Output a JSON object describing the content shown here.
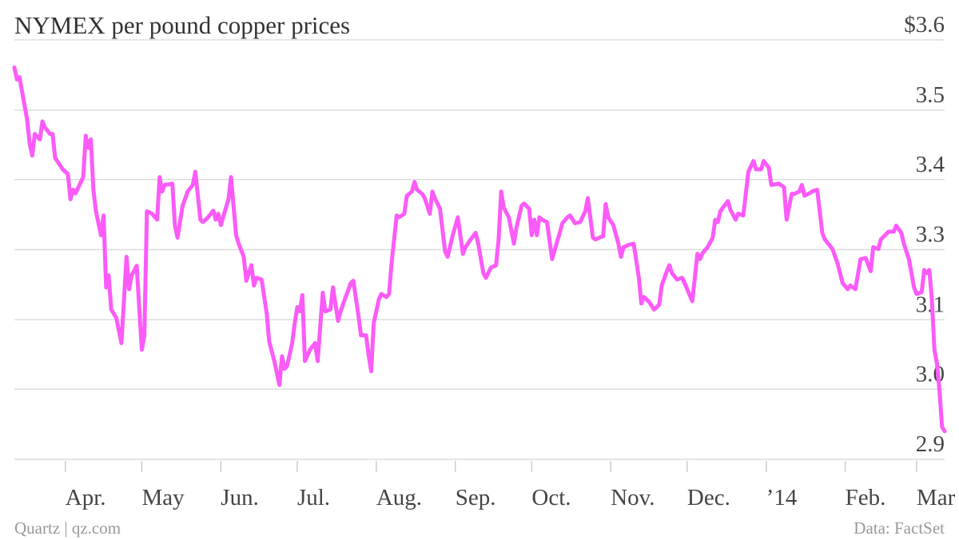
{
  "chart_data": {
    "type": "line",
    "title": "NYMEX per pound copper prices",
    "source": "Quartz | qz.com",
    "credit": "Data: FactSet",
    "color": "#fb5bf8",
    "grid": true,
    "xlim": [
      "2013-03-12",
      "2014-03-12"
    ],
    "xticks": [
      {
        "value": "2013-04-01",
        "label": "Apr."
      },
      {
        "value": "2013-05-01",
        "label": "May"
      },
      {
        "value": "2013-06-01",
        "label": "Jun."
      },
      {
        "value": "2013-07-01",
        "label": "Jul."
      },
      {
        "value": "2013-08-01",
        "label": "Aug."
      },
      {
        "value": "2013-09-01",
        "label": "Sep."
      },
      {
        "value": "2013-10-01",
        "label": "Oct."
      },
      {
        "value": "2013-11-01",
        "label": "Nov."
      },
      {
        "value": "2013-12-01",
        "label": "Dec."
      },
      {
        "value": "2014-01-01",
        "label": "’14"
      },
      {
        "value": "2014-02-01",
        "label": "Feb."
      },
      {
        "value": "2014-03-01",
        "label": "Mar"
      }
    ],
    "ylim": [
      2.9,
      3.6
    ],
    "yticks": [
      {
        "value": 3.6,
        "label": "$3.6"
      },
      {
        "value": 3.483,
        "label": "3.5"
      },
      {
        "value": 3.367,
        "label": "3.4"
      },
      {
        "value": 3.25,
        "label": "3.3"
      },
      {
        "value": 3.133,
        "label": "3.1"
      },
      {
        "value": 3.017,
        "label": "3.0"
      },
      {
        "value": 2.9,
        "label": "2.9"
      }
    ],
    "x": [
      "2013-03-12",
      "2013-03-13",
      "2013-03-14",
      "2013-03-15",
      "2013-03-17",
      "2013-03-18",
      "2013-03-19",
      "2013-03-20",
      "2013-03-22",
      "2013-03-23",
      "2013-03-24",
      "2013-03-26",
      "2013-03-27",
      "2013-03-28",
      "2013-03-31",
      "2013-04-02",
      "2013-04-03",
      "2013-04-04",
      "2013-04-05",
      "2013-04-08",
      "2013-04-09",
      "2013-04-10",
      "2013-04-11",
      "2013-04-12",
      "2013-04-13",
      "2013-04-15",
      "2013-04-16",
      "2013-04-17",
      "2013-04-18",
      "2013-04-19",
      "2013-04-21",
      "2013-04-23",
      "2013-04-25",
      "2013-04-26",
      "2013-04-27",
      "2013-04-29",
      "2013-05-01",
      "2013-05-02",
      "2013-05-03",
      "2013-05-05",
      "2013-05-07",
      "2013-05-08",
      "2013-05-09",
      "2013-05-10",
      "2013-05-13",
      "2013-05-14",
      "2013-05-15",
      "2013-05-17",
      "2013-05-19",
      "2013-05-21",
      "2013-05-22",
      "2013-05-24",
      "2013-05-25",
      "2013-05-27",
      "2013-05-29",
      "2013-05-30",
      "2013-05-31",
      "2013-06-01",
      "2013-06-04",
      "2013-06-05",
      "2013-06-07",
      "2013-06-08",
      "2013-06-10",
      "2013-06-11",
      "2013-06-13",
      "2013-06-14",
      "2013-06-15",
      "2013-06-17",
      "2013-06-19",
      "2013-06-20",
      "2013-06-22",
      "2013-06-23",
      "2013-06-24",
      "2013-06-25",
      "2013-06-26",
      "2013-06-27",
      "2013-06-29",
      "2013-06-30",
      "2013-07-01",
      "2013-07-02",
      "2013-07-03",
      "2013-07-04",
      "2013-07-06",
      "2013-07-08",
      "2013-07-09",
      "2013-07-11",
      "2013-07-12",
      "2013-07-14",
      "2013-07-15",
      "2013-07-17",
      "2013-07-18",
      "2013-07-20",
      "2013-07-22",
      "2013-07-23",
      "2013-07-25",
      "2013-07-26",
      "2013-07-28",
      "2013-07-29",
      "2013-07-30",
      "2013-07-31",
      "2013-08-02",
      "2013-08-03",
      "2013-08-05",
      "2013-08-06",
      "2013-08-07",
      "2013-08-09",
      "2013-08-10",
      "2013-08-12",
      "2013-08-13",
      "2013-08-15",
      "2013-08-16",
      "2013-08-17",
      "2013-08-19",
      "2013-08-20",
      "2013-08-22",
      "2013-08-23",
      "2013-08-24",
      "2013-08-26",
      "2013-08-28",
      "2013-08-29",
      "2013-08-31",
      "2013-09-02",
      "2013-09-04",
      "2013-09-05",
      "2013-09-07",
      "2013-09-09",
      "2013-09-10",
      "2013-09-12",
      "2013-09-13",
      "2013-09-15",
      "2013-09-17",
      "2013-09-18",
      "2013-09-19",
      "2013-09-20",
      "2013-09-22",
      "2013-09-24",
      "2013-09-25",
      "2013-09-27",
      "2013-09-28",
      "2013-09-30",
      "2013-10-01",
      "2013-10-02",
      "2013-10-03",
      "2013-10-04",
      "2013-10-05",
      "2013-10-07",
      "2013-10-09",
      "2013-10-11",
      "2013-10-12",
      "2013-10-13",
      "2013-10-15",
      "2013-10-16",
      "2013-10-18",
      "2013-10-20",
      "2013-10-22",
      "2013-10-23",
      "2013-10-25",
      "2013-10-26",
      "2013-10-28",
      "2013-10-29",
      "2013-10-30",
      "2013-10-31",
      "2013-11-02",
      "2013-11-04",
      "2013-11-05",
      "2013-11-06",
      "2013-11-08",
      "2013-11-10",
      "2013-11-12",
      "2013-11-13",
      "2013-11-14",
      "2013-11-16",
      "2013-11-18",
      "2013-11-20",
      "2013-11-21",
      "2013-11-23",
      "2013-11-24",
      "2013-11-25",
      "2013-11-27",
      "2013-11-29",
      "2013-11-30",
      "2013-12-02",
      "2013-12-03",
      "2013-12-05",
      "2013-12-06",
      "2013-12-07",
      "2013-12-09",
      "2013-12-11",
      "2013-12-12",
      "2013-12-13",
      "2013-12-14",
      "2013-12-15",
      "2013-12-17",
      "2013-12-18",
      "2013-12-20",
      "2013-12-21",
      "2013-12-23",
      "2013-12-25",
      "2013-12-27",
      "2013-12-28",
      "2013-12-30",
      "2013-12-31",
      "2014-01-02",
      "2014-01-03",
      "2014-01-06",
      "2014-01-08",
      "2014-01-09",
      "2014-01-11",
      "2014-01-12",
      "2014-01-14",
      "2014-01-15",
      "2014-01-16",
      "2014-01-18",
      "2014-01-19",
      "2014-01-21",
      "2014-01-23",
      "2014-01-24",
      "2014-01-27",
      "2014-01-29",
      "2014-01-31",
      "2014-02-02",
      "2014-02-03",
      "2014-02-05",
      "2014-02-07",
      "2014-02-09",
      "2014-02-11",
      "2014-02-12",
      "2014-02-14",
      "2014-02-15",
      "2014-02-18",
      "2014-02-20",
      "2014-02-21",
      "2014-02-23",
      "2014-02-24",
      "2014-02-26",
      "2014-02-28",
      "2014-03-01",
      "2014-03-03",
      "2014-03-04",
      "2014-03-05",
      "2014-03-06",
      "2014-03-07",
      "2014-03-08",
      "2014-03-09",
      "2014-03-10",
      "2014-03-11",
      "2014-03-12"
    ],
    "values": [
      3.554,
      3.534,
      3.538,
      3.514,
      3.467,
      3.427,
      3.407,
      3.443,
      3.434,
      3.464,
      3.454,
      3.443,
      3.443,
      3.403,
      3.384,
      3.376,
      3.334,
      3.35,
      3.344,
      3.371,
      3.44,
      3.42,
      3.434,
      3.35,
      3.314,
      3.274,
      3.307,
      3.187,
      3.207,
      3.15,
      3.136,
      3.094,
      3.238,
      3.184,
      3.207,
      3.223,
      3.083,
      3.107,
      3.314,
      3.31,
      3.3,
      3.371,
      3.347,
      3.358,
      3.36,
      3.29,
      3.27,
      3.323,
      3.347,
      3.358,
      3.38,
      3.3,
      3.296,
      3.304,
      3.315,
      3.3,
      3.31,
      3.291,
      3.334,
      3.371,
      3.274,
      3.26,
      3.238,
      3.198,
      3.224,
      3.19,
      3.203,
      3.2,
      3.144,
      3.096,
      3.064,
      3.044,
      3.024,
      3.072,
      3.051,
      3.056,
      3.094,
      3.127,
      3.154,
      3.147,
      3.174,
      3.064,
      3.083,
      3.094,
      3.064,
      3.178,
      3.147,
      3.15,
      3.187,
      3.131,
      3.147,
      3.171,
      3.194,
      3.198,
      3.14,
      3.107,
      3.107,
      3.074,
      3.047,
      3.127,
      3.167,
      3.176,
      3.171,
      3.176,
      3.227,
      3.307,
      3.304,
      3.31,
      3.34,
      3.347,
      3.363,
      3.35,
      3.343,
      3.336,
      3.31,
      3.347,
      3.336,
      3.318,
      3.247,
      3.238,
      3.274,
      3.304,
      3.243,
      3.254,
      3.267,
      3.278,
      3.26,
      3.211,
      3.203,
      3.22,
      3.224,
      3.267,
      3.347,
      3.32,
      3.304,
      3.26,
      3.287,
      3.323,
      3.327,
      3.318,
      3.274,
      3.3,
      3.274,
      3.304,
      3.3,
      3.296,
      3.234,
      3.264,
      3.278,
      3.294,
      3.304,
      3.307,
      3.294,
      3.296,
      3.314,
      3.336,
      3.27,
      3.267,
      3.271,
      3.272,
      3.326,
      3.304,
      3.291,
      3.26,
      3.238,
      3.254,
      3.258,
      3.26,
      3.204,
      3.16,
      3.171,
      3.163,
      3.15,
      3.158,
      3.19,
      3.214,
      3.224,
      3.211,
      3.2,
      3.203,
      3.194,
      3.174,
      3.164,
      3.243,
      3.234,
      3.244,
      3.254,
      3.27,
      3.3,
      3.296,
      3.314,
      3.32,
      3.331,
      3.316,
      3.3,
      3.31,
      3.307,
      3.38,
      3.398,
      3.384,
      3.384,
      3.398,
      3.387,
      3.358,
      3.36,
      3.354,
      3.3,
      3.343,
      3.343,
      3.347,
      3.358,
      3.34,
      3.344,
      3.347,
      3.35,
      3.278,
      3.267,
      3.251,
      3.227,
      3.194,
      3.184,
      3.19,
      3.184,
      3.234,
      3.236,
      3.214,
      3.254,
      3.251,
      3.267,
      3.28,
      3.28,
      3.29,
      3.278,
      3.26,
      3.234,
      3.187,
      3.176,
      3.179,
      3.216,
      3.211,
      3.216,
      3.167,
      3.083,
      3.06,
      3.014,
      2.954,
      2.947
    ]
  }
}
